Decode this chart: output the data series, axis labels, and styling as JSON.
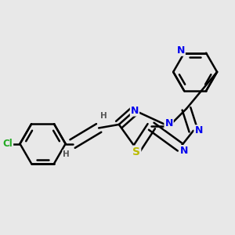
{
  "background_color": "#e8e8e8",
  "bond_color": "#000000",
  "bond_width": 1.8,
  "atom_colors": {
    "N": "#0000ee",
    "S": "#bbbb00",
    "Cl": "#22aa22",
    "H": "#555555"
  },
  "font_size_N": 9,
  "font_size_S": 9,
  "font_size_Cl": 8.5,
  "font_size_H": 7.5
}
